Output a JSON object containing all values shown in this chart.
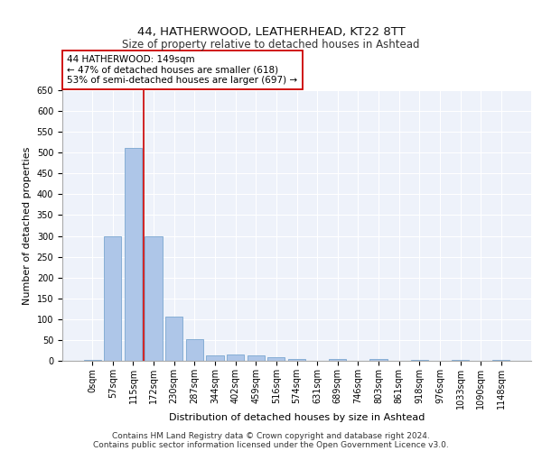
{
  "title1": "44, HATHERWOOD, LEATHERHEAD, KT22 8TT",
  "title2": "Size of property relative to detached houses in Ashtead",
  "xlabel": "Distribution of detached houses by size in Ashtead",
  "ylabel": "Number of detached properties",
  "bar_labels": [
    "0sqm",
    "57sqm",
    "115sqm",
    "172sqm",
    "230sqm",
    "287sqm",
    "344sqm",
    "402sqm",
    "459sqm",
    "516sqm",
    "574sqm",
    "631sqm",
    "689sqm",
    "746sqm",
    "803sqm",
    "861sqm",
    "918sqm",
    "976sqm",
    "1033sqm",
    "1090sqm",
    "1148sqm"
  ],
  "bar_values": [
    3,
    298,
    511,
    300,
    107,
    53,
    14,
    16,
    12,
    8,
    5,
    0,
    5,
    0,
    4,
    0,
    3,
    0,
    3,
    0,
    3
  ],
  "bar_color": "#aec6e8",
  "bar_edge_color": "#7ba7d0",
  "background_color": "#eef2fa",
  "grid_color": "#ffffff",
  "vline_x": 2.5,
  "vline_color": "#cc0000",
  "annotation_text": "44 HATHERWOOD: 149sqm\n← 47% of detached houses are smaller (618)\n53% of semi-detached houses are larger (697) →",
  "annotation_box_color": "#ffffff",
  "annotation_box_edge": "#cc0000",
  "ylim": [
    0,
    650
  ],
  "yticks": [
    0,
    50,
    100,
    150,
    200,
    250,
    300,
    350,
    400,
    450,
    500,
    550,
    600,
    650
  ],
  "footer_line1": "Contains HM Land Registry data © Crown copyright and database right 2024.",
  "footer_line2": "Contains public sector information licensed under the Open Government Licence v3.0.",
  "title1_fontsize": 9.5,
  "title2_fontsize": 8.5,
  "xlabel_fontsize": 8,
  "ylabel_fontsize": 8,
  "tick_fontsize": 7,
  "annotation_fontsize": 7.5,
  "footer_fontsize": 6.5
}
